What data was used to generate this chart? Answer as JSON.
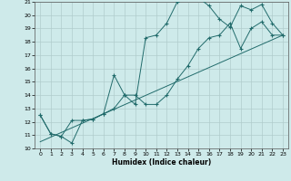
{
  "xlabel": "Humidex (Indice chaleur)",
  "xlim": [
    -0.5,
    23.5
  ],
  "ylim": [
    10,
    21
  ],
  "xticks": [
    0,
    1,
    2,
    3,
    4,
    5,
    6,
    7,
    8,
    9,
    10,
    11,
    12,
    13,
    14,
    15,
    16,
    17,
    18,
    19,
    20,
    21,
    22,
    23
  ],
  "yticks": [
    10,
    11,
    12,
    13,
    14,
    15,
    16,
    17,
    18,
    19,
    20,
    21
  ],
  "background_color": "#ceeaea",
  "grid_color": "#b0cccc",
  "line_color": "#216b6b",
  "line1_x": [
    0,
    1,
    2,
    3,
    4,
    5,
    6,
    7,
    8,
    9,
    10,
    11,
    12,
    13,
    14,
    15,
    16,
    17,
    18,
    19,
    20,
    21,
    22,
    23
  ],
  "line1_y": [
    12.5,
    11.1,
    10.9,
    10.4,
    12.1,
    12.2,
    12.6,
    13.0,
    14.0,
    13.3,
    18.3,
    18.5,
    19.4,
    21.0,
    21.3,
    21.3,
    20.7,
    19.7,
    19.1,
    20.7,
    20.4,
    20.8,
    19.4,
    18.5
  ],
  "line2_x": [
    0,
    1,
    2,
    3,
    4,
    5,
    6,
    7,
    8,
    9,
    10,
    11,
    12,
    13,
    14,
    15,
    16,
    17,
    18,
    19,
    20,
    21,
    22,
    23
  ],
  "line2_y": [
    12.5,
    11.1,
    10.9,
    12.1,
    12.1,
    12.2,
    12.6,
    15.5,
    14.0,
    14.0,
    13.3,
    13.3,
    14.0,
    15.2,
    16.2,
    17.5,
    18.3,
    18.5,
    19.4,
    17.5,
    19.0,
    19.5,
    18.5,
    18.5
  ],
  "line3_x": [
    0,
    23
  ],
  "line3_y": [
    10.5,
    18.5
  ]
}
